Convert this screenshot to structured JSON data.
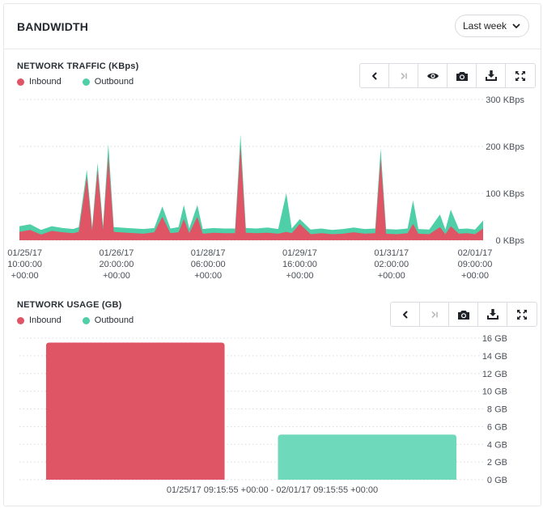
{
  "header": {
    "title": "BANDWIDTH",
    "range_label": "Last week"
  },
  "traffic": {
    "title": "NETWORK TRAFFIC (KBps)",
    "legend": [
      {
        "label": "Inbound",
        "color": "#e05565"
      },
      {
        "label": "Outbound",
        "color": "#4fcfa8"
      }
    ],
    "toolbar": [
      "previous",
      "next",
      "visibility",
      "snapshot",
      "download",
      "fullscreen"
    ]
  },
  "usage": {
    "title": "NETWORK USAGE (GB)",
    "legend": [
      {
        "label": "Inbound",
        "color": "#e05565"
      },
      {
        "label": "Outbound",
        "color": "#4fcfa8"
      }
    ],
    "toolbar": [
      "previous",
      "next",
      "snapshot",
      "download",
      "fullscreen"
    ],
    "range_caption": "01/25/17 09:15:55 +00:00 - 02/01/17 09:15:55 +00:00"
  },
  "chart_data": [
    {
      "type": "area",
      "title": "NETWORK TRAFFIC (KBps)",
      "ylim": [
        0,
        300
      ],
      "yticks": [
        "0 KBps",
        "100 KBps",
        "200 KBps",
        "300 KBps"
      ],
      "ytick_values": [
        0,
        100,
        200,
        300
      ],
      "x_range": [
        "01/25/17 08:00",
        "02/01/17 12:00"
      ],
      "xticks": [
        {
          "value": "01/25/17 10:00",
          "lines": [
            "01/25/17",
            "10:00:00",
            "+00:00"
          ]
        },
        {
          "value": "01/26/17 20:00",
          "lines": [
            "01/26/17",
            "20:00:00",
            "+00:00"
          ]
        },
        {
          "value": "01/28/17 06:00",
          "lines": [
            "01/28/17",
            "06:00:00",
            "+00:00"
          ]
        },
        {
          "value": "01/29/17 16:00",
          "lines": [
            "01/29/17",
            "16:00:00",
            "+00:00"
          ]
        },
        {
          "value": "01/31/17 02:00",
          "lines": [
            "01/31/17",
            "02:00:00",
            "+00:00"
          ]
        },
        {
          "value": "02/01/17 09:00",
          "lines": [
            "02/01/17",
            "09:00:00",
            "+00:00"
          ]
        }
      ],
      "grid": true,
      "series": [
        {
          "name": "Inbound",
          "color": "#e05565",
          "points": [
            [
              "01/25/17 08:00",
              18
            ],
            [
              "01/25/17 12:00",
              22
            ],
            [
              "01/25/17 16:00",
              12
            ],
            [
              "01/25/17 20:00",
              20
            ],
            [
              "01/26/17 00:00",
              17
            ],
            [
              "01/26/17 04:00",
              15
            ],
            [
              "01/26/17 06:00",
              18
            ],
            [
              "01/26/17 09:00",
              135
            ],
            [
              "01/26/17 11:00",
              20
            ],
            [
              "01/26/17 13:00",
              150
            ],
            [
              "01/26/17 15:00",
              22
            ],
            [
              "01/26/17 17:00",
              180
            ],
            [
              "01/26/17 19:00",
              18
            ],
            [
              "01/27/17 00:00",
              16
            ],
            [
              "01/27/17 06:00",
              14
            ],
            [
              "01/27/17 10:00",
              17
            ],
            [
              "01/27/17 13:00",
              50
            ],
            [
              "01/27/17 16:00",
              15
            ],
            [
              "01/27/17 19:00",
              17
            ],
            [
              "01/27/17 21:00",
              45
            ],
            [
              "01/27/17 23:00",
              15
            ],
            [
              "01/28/17 02:00",
              50
            ],
            [
              "01/28/17 04:00",
              14
            ],
            [
              "01/28/17 08:00",
              16
            ],
            [
              "01/28/17 12:00",
              15
            ],
            [
              "01/28/17 16:00",
              15
            ],
            [
              "01/28/17 18:00",
              200
            ],
            [
              "01/28/17 20:00",
              16
            ],
            [
              "01/29/17 00:00",
              15
            ],
            [
              "01/29/17 04:00",
              16
            ],
            [
              "01/29/17 08:00",
              14
            ],
            [
              "01/29/17 11:00",
              18
            ],
            [
              "01/29/17 13:00",
              15
            ],
            [
              "01/29/17 16:00",
              35
            ],
            [
              "01/29/17 20:00",
              13
            ],
            [
              "01/30/17 00:00",
              15
            ],
            [
              "01/30/17 04:00",
              13
            ],
            [
              "01/30/17 08:00",
              14
            ],
            [
              "01/30/17 12:00",
              17
            ],
            [
              "01/30/17 16:00",
              14
            ],
            [
              "01/30/17 20:00",
              15
            ],
            [
              "01/30/17 22:00",
              175
            ],
            [
              "01/31/17 00:00",
              14
            ],
            [
              "01/31/17 04:00",
              13
            ],
            [
              "01/31/17 08:00",
              15
            ],
            [
              "01/31/17 10:00",
              35
            ],
            [
              "01/31/17 12:00",
              14
            ],
            [
              "01/31/17 16:00",
              13
            ],
            [
              "01/31/17 20:00",
              28
            ],
            [
              "01/31/17 22:00",
              13
            ],
            [
              "02/01/17 00:00",
              30
            ],
            [
              "02/01/17 03:00",
              14
            ],
            [
              "02/01/17 06:00",
              15
            ],
            [
              "02/01/17 09:00",
              13
            ],
            [
              "02/01/17 12:00",
              25
            ]
          ]
        },
        {
          "name": "Outbound",
          "color": "#4fcfa8",
          "points": [
            [
              "01/25/17 08:00",
              30
            ],
            [
              "01/25/17 12:00",
              34
            ],
            [
              "01/25/17 16:00",
              22
            ],
            [
              "01/25/17 20:00",
              30
            ],
            [
              "01/26/17 00:00",
              26
            ],
            [
              "01/26/17 04:00",
              24
            ],
            [
              "01/26/17 06:00",
              28
            ],
            [
              "01/26/17 09:00",
              150
            ],
            [
              "01/26/17 11:00",
              28
            ],
            [
              "01/26/17 13:00",
              165
            ],
            [
              "01/26/17 15:00",
              30
            ],
            [
              "01/26/17 17:00",
              205
            ],
            [
              "01/26/17 19:00",
              28
            ],
            [
              "01/27/17 00:00",
              26
            ],
            [
              "01/27/17 06:00",
              24
            ],
            [
              "01/27/17 10:00",
              26
            ],
            [
              "01/27/17 13:00",
              72
            ],
            [
              "01/27/17 16:00",
              25
            ],
            [
              "01/27/17 19:00",
              28
            ],
            [
              "01/27/17 21:00",
              75
            ],
            [
              "01/27/17 23:00",
              25
            ],
            [
              "01/28/17 02:00",
              75
            ],
            [
              "01/28/17 04:00",
              24
            ],
            [
              "01/28/17 08:00",
              26
            ],
            [
              "01/28/17 12:00",
              25
            ],
            [
              "01/28/17 16:00",
              25
            ],
            [
              "01/28/17 18:00",
              225
            ],
            [
              "01/28/17 20:00",
              26
            ],
            [
              "01/29/17 00:00",
              25
            ],
            [
              "01/29/17 04:00",
              27
            ],
            [
              "01/29/17 08:00",
              24
            ],
            [
              "01/29/17 11:00",
              100
            ],
            [
              "01/29/17 13:00",
              25
            ],
            [
              "01/29/17 16:00",
              45
            ],
            [
              "01/29/17 20:00",
              23
            ],
            [
              "01/30/17 00:00",
              25
            ],
            [
              "01/30/17 04:00",
              22
            ],
            [
              "01/30/17 08:00",
              24
            ],
            [
              "01/30/17 12:00",
              27
            ],
            [
              "01/30/17 16:00",
              24
            ],
            [
              "01/30/17 20:00",
              25
            ],
            [
              "01/30/17 22:00",
              195
            ],
            [
              "01/31/17 00:00",
              24
            ],
            [
              "01/31/17 04:00",
              23
            ],
            [
              "01/31/17 08:00",
              25
            ],
            [
              "01/31/17 10:00",
              85
            ],
            [
              "01/31/17 12:00",
              24
            ],
            [
              "01/31/17 16:00",
              23
            ],
            [
              "01/31/17 20:00",
              55
            ],
            [
              "01/31/17 22:00",
              23
            ],
            [
              "02/01/17 00:00",
              65
            ],
            [
              "02/01/17 03:00",
              24
            ],
            [
              "02/01/17 06:00",
              25
            ],
            [
              "02/01/17 09:00",
              23
            ],
            [
              "02/01/17 12:00",
              42
            ]
          ]
        }
      ]
    },
    {
      "type": "bar",
      "title": "NETWORK USAGE (GB)",
      "categories": [
        "Inbound",
        "Outbound"
      ],
      "values": [
        15.5,
        5.1
      ],
      "colors": [
        "#e05565",
        "#6fd9bb"
      ],
      "ylim": [
        0,
        16
      ],
      "yticks": [
        "0 GB",
        "2 GB",
        "4 GB",
        "6 GB",
        "8 GB",
        "10 GB",
        "12 GB",
        "14 GB",
        "16 GB"
      ],
      "ytick_values": [
        0,
        2,
        4,
        6,
        8,
        10,
        12,
        14,
        16
      ],
      "xlabel": "01/25/17 09:15:55 +00:00 - 02/01/17 09:15:55 +00:00",
      "grid": true
    }
  ]
}
